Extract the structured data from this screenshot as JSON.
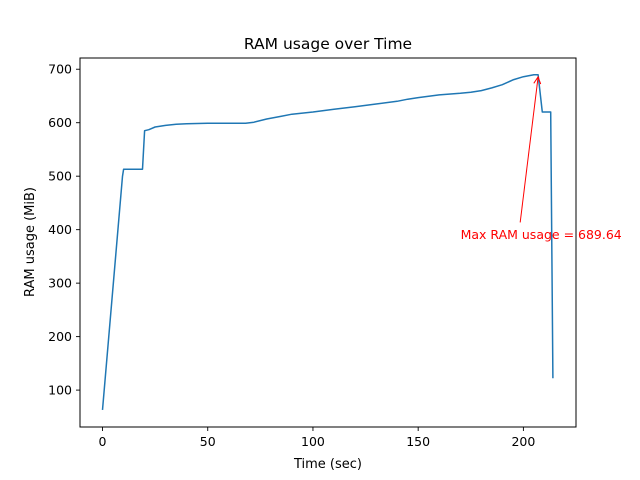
{
  "chart_data": {
    "type": "line",
    "title": "RAM usage over Time",
    "xlabel": "Time (sec)",
    "ylabel": "RAM usage (MiB)",
    "xlim": [
      -10.7,
      225
    ],
    "ylim": [
      31,
      721
    ],
    "xticks": [
      0,
      50,
      100,
      150,
      200
    ],
    "yticks": [
      100,
      200,
      300,
      400,
      500,
      600,
      700
    ],
    "grid": false,
    "line_color": "#1f77b4",
    "annotation_color": "#ff0000",
    "series": [
      {
        "x": [
          0,
          9.5,
          10,
          19,
          20,
          22,
          25,
          30,
          35,
          40,
          50,
          60,
          68,
          72,
          78,
          85,
          90,
          100,
          110,
          120,
          130,
          140,
          145,
          150,
          160,
          170,
          175,
          180,
          185,
          190,
          195,
          200,
          205,
          207,
          209,
          211,
          213,
          214
        ],
        "y": [
          63,
          500,
          513,
          513,
          585,
          587,
          592,
          595,
          597,
          598,
          599,
          599,
          599,
          601,
          607,
          612,
          616,
          620,
          625,
          630,
          635,
          640,
          644,
          647,
          652,
          655,
          657,
          660,
          665,
          671,
          680,
          686,
          689.64,
          689.64,
          620,
          620,
          620,
          122
        ]
      }
    ],
    "annotation": {
      "text": "Max RAM usage = 689.64",
      "xy": [
        207,
        689.64
      ],
      "xytext": [
        198,
        391
      ]
    }
  }
}
